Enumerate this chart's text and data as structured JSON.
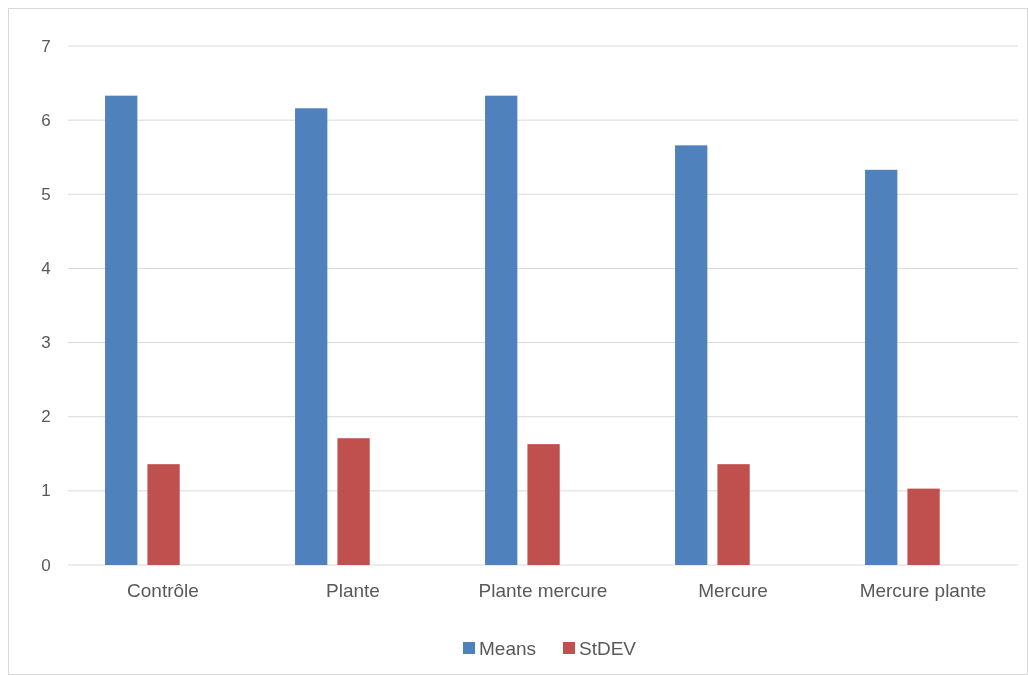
{
  "chart_data": {
    "type": "bar",
    "categories": [
      "Contrôle",
      "Plante",
      "Plante mercure",
      "Mercure",
      "Mercure plante"
    ],
    "series": [
      {
        "name": "Means",
        "color": "#4f81bd",
        "values": [
          6.33,
          6.16,
          6.33,
          5.66,
          5.33
        ]
      },
      {
        "name": "StDEV",
        "color": "#c0504d",
        "values": [
          1.36,
          1.71,
          1.63,
          1.36,
          1.03
        ]
      }
    ],
    "ylim": [
      0,
      7
    ],
    "yticks": [
      0,
      1,
      2,
      3,
      4,
      5,
      6,
      7
    ],
    "grid": "y",
    "legend": "bottom"
  }
}
